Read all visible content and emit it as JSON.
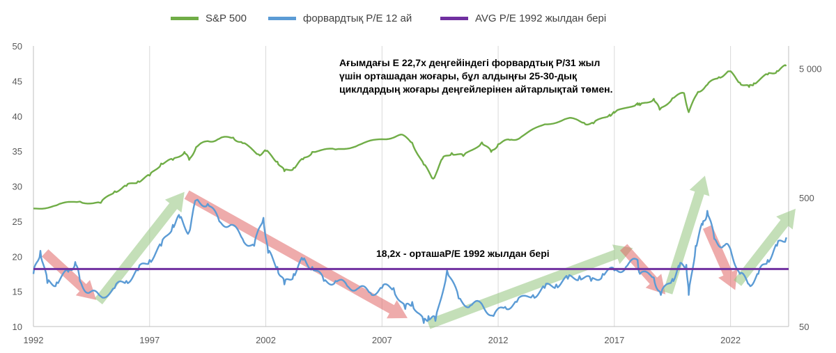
{
  "legend": [
    {
      "label": "S&P 500",
      "color": "#70ad47"
    },
    {
      "label": "форвардтық P/E 12 ай",
      "color": "#5b9bd5"
    },
    {
      "label": "AVG P/E 1992 жылдан бері",
      "color": "#7030a0"
    }
  ],
  "annotations": {
    "main": "Ағымдағы Е 22,7x деңгейіндегі форвардтық Р/31 жыл үшін орташадан жоғары, бұл алдыңғы 25-30-дық циклдардың жоғары деңгейлерінен айтарлықтай төмен.",
    "avg": "18,2х - орташаР/Е  1992 жылдан бері"
  },
  "chart_data": {
    "type": "line",
    "x_ticks": [
      "1992",
      "1997",
      "2002",
      "2007",
      "2012",
      "2017",
      "2022"
    ],
    "xlim": [
      1992,
      2024.5
    ],
    "y_left": {
      "ticks": [
        "10",
        "15",
        "20",
        "25",
        "30",
        "35",
        "40",
        "45",
        "50"
      ],
      "ylim": [
        10,
        50
      ]
    },
    "y_right": {
      "scale": "log",
      "ticks": [
        "50",
        "500",
        "5 000"
      ],
      "ylim": [
        50,
        7500
      ]
    },
    "avg_pe": 18.2,
    "grid": "vertical",
    "legend_position": "top",
    "series": [
      {
        "name": "S&P 500",
        "axis": "right",
        "color": "#70ad47",
        "points": [
          [
            1992.0,
            412
          ],
          [
            1993.0,
            436
          ],
          [
            1994.0,
            466
          ],
          [
            1994.9,
            455
          ],
          [
            1995.5,
            560
          ],
          [
            1996.0,
            615
          ],
          [
            1996.5,
            670
          ],
          [
            1997.0,
            740
          ],
          [
            1997.5,
            920
          ],
          [
            1998.0,
            980
          ],
          [
            1998.5,
            1130
          ],
          [
            1998.7,
            980
          ],
          [
            1999.0,
            1230
          ],
          [
            1999.5,
            1370
          ],
          [
            2000.0,
            1430
          ],
          [
            2000.6,
            1460
          ],
          [
            2001.0,
            1320
          ],
          [
            2001.7,
            1080
          ],
          [
            2002.0,
            1150
          ],
          [
            2002.5,
            950
          ],
          [
            2002.8,
            800
          ],
          [
            2003.2,
            850
          ],
          [
            2003.6,
            990
          ],
          [
            2004.0,
            1130
          ],
          [
            2005.0,
            1180
          ],
          [
            2006.0,
            1280
          ],
          [
            2007.0,
            1420
          ],
          [
            2007.8,
            1540
          ],
          [
            2008.3,
            1330
          ],
          [
            2008.8,
            900
          ],
          [
            2009.2,
            700
          ],
          [
            2009.6,
            1000
          ],
          [
            2010.0,
            1110
          ],
          [
            2010.5,
            1050
          ],
          [
            2011.3,
            1340
          ],
          [
            2011.7,
            1130
          ],
          [
            2012.0,
            1300
          ],
          [
            2012.5,
            1400
          ],
          [
            2013.0,
            1480
          ],
          [
            2014.0,
            1850
          ],
          [
            2015.0,
            2060
          ],
          [
            2015.7,
            1900
          ],
          [
            2016.1,
            1880
          ],
          [
            2016.8,
            2200
          ],
          [
            2017.0,
            2270
          ],
          [
            2018.0,
            2700
          ],
          [
            2018.1,
            2600
          ],
          [
            2018.7,
            2920
          ],
          [
            2018.95,
            2400
          ],
          [
            2019.5,
            2950
          ],
          [
            2020.0,
            3230
          ],
          [
            2020.2,
            2300
          ],
          [
            2020.6,
            3300
          ],
          [
            2021.0,
            3750
          ],
          [
            2021.5,
            4300
          ],
          [
            2021.95,
            4770
          ],
          [
            2022.4,
            3900
          ],
          [
            2022.8,
            3600
          ],
          [
            2023.0,
            3850
          ],
          [
            2023.6,
            4500
          ],
          [
            2024.0,
            4800
          ],
          [
            2024.4,
            5250
          ]
        ]
      },
      {
        "name": "форвардтық P/E 12 ай",
        "axis": "left",
        "color": "#5b9bd5",
        "points": [
          [
            1992.0,
            17.5
          ],
          [
            1992.3,
            20.8
          ],
          [
            1992.6,
            16.2
          ],
          [
            1993.0,
            16.3
          ],
          [
            1993.5,
            17.8
          ],
          [
            1993.8,
            19.2
          ],
          [
            1994.0,
            16.5
          ],
          [
            1994.4,
            14.8
          ],
          [
            1994.9,
            14.3
          ],
          [
            1995.5,
            15.5
          ],
          [
            1996.0,
            16.5
          ],
          [
            1996.5,
            18.0
          ],
          [
            1997.0,
            19.5
          ],
          [
            1997.5,
            21.5
          ],
          [
            1998.0,
            24.5
          ],
          [
            1998.3,
            25.5
          ],
          [
            1998.7,
            23.5
          ],
          [
            1999.0,
            28.0
          ],
          [
            1999.5,
            27.5
          ],
          [
            2000.0,
            25.0
          ],
          [
            2000.5,
            24.5
          ],
          [
            2001.0,
            22.5
          ],
          [
            2001.5,
            21.5
          ],
          [
            2001.9,
            25.5
          ],
          [
            2002.1,
            20.5
          ],
          [
            2002.5,
            18.5
          ],
          [
            2002.8,
            16.0
          ],
          [
            2003.2,
            17.5
          ],
          [
            2003.6,
            19.5
          ],
          [
            2004.0,
            18.5
          ],
          [
            2004.5,
            16.5
          ],
          [
            2005.0,
            16.5
          ],
          [
            2005.5,
            15.8
          ],
          [
            2006.0,
            15.5
          ],
          [
            2006.5,
            14.8
          ],
          [
            2007.0,
            15.5
          ],
          [
            2007.5,
            15.5
          ],
          [
            2008.0,
            12.5
          ],
          [
            2008.3,
            13.5
          ],
          [
            2008.8,
            10.5
          ],
          [
            2009.0,
            11.5
          ],
          [
            2009.3,
            10.8
          ],
          [
            2009.8,
            18.0
          ],
          [
            2010.3,
            14.0
          ],
          [
            2010.8,
            13.0
          ],
          [
            2011.3,
            13.2
          ],
          [
            2011.8,
            11.5
          ],
          [
            2012.3,
            12.8
          ],
          [
            2012.8,
            13.5
          ],
          [
            2013.5,
            14.5
          ],
          [
            2014.0,
            15.5
          ],
          [
            2014.5,
            16.0
          ],
          [
            2015.0,
            16.8
          ],
          [
            2015.5,
            17.2
          ],
          [
            2016.0,
            16.5
          ],
          [
            2016.5,
            17.5
          ],
          [
            2017.0,
            18.0
          ],
          [
            2017.5,
            18.5
          ],
          [
            2018.0,
            19.5
          ],
          [
            2018.1,
            17.5
          ],
          [
            2018.7,
            17.0
          ],
          [
            2019.0,
            14.5
          ],
          [
            2019.5,
            16.8
          ],
          [
            2019.8,
            18.5
          ],
          [
            2020.1,
            18.8
          ],
          [
            2020.2,
            14.5
          ],
          [
            2020.5,
            21.5
          ],
          [
            2020.8,
            24.5
          ],
          [
            2021.0,
            26.5
          ],
          [
            2021.3,
            22.5
          ],
          [
            2021.7,
            21.5
          ],
          [
            2022.0,
            21.0
          ],
          [
            2022.4,
            17.5
          ],
          [
            2022.8,
            16.0
          ],
          [
            2023.2,
            17.5
          ],
          [
            2023.6,
            19.5
          ],
          [
            2024.0,
            21.5
          ],
          [
            2024.4,
            22.7
          ]
        ]
      }
    ]
  }
}
